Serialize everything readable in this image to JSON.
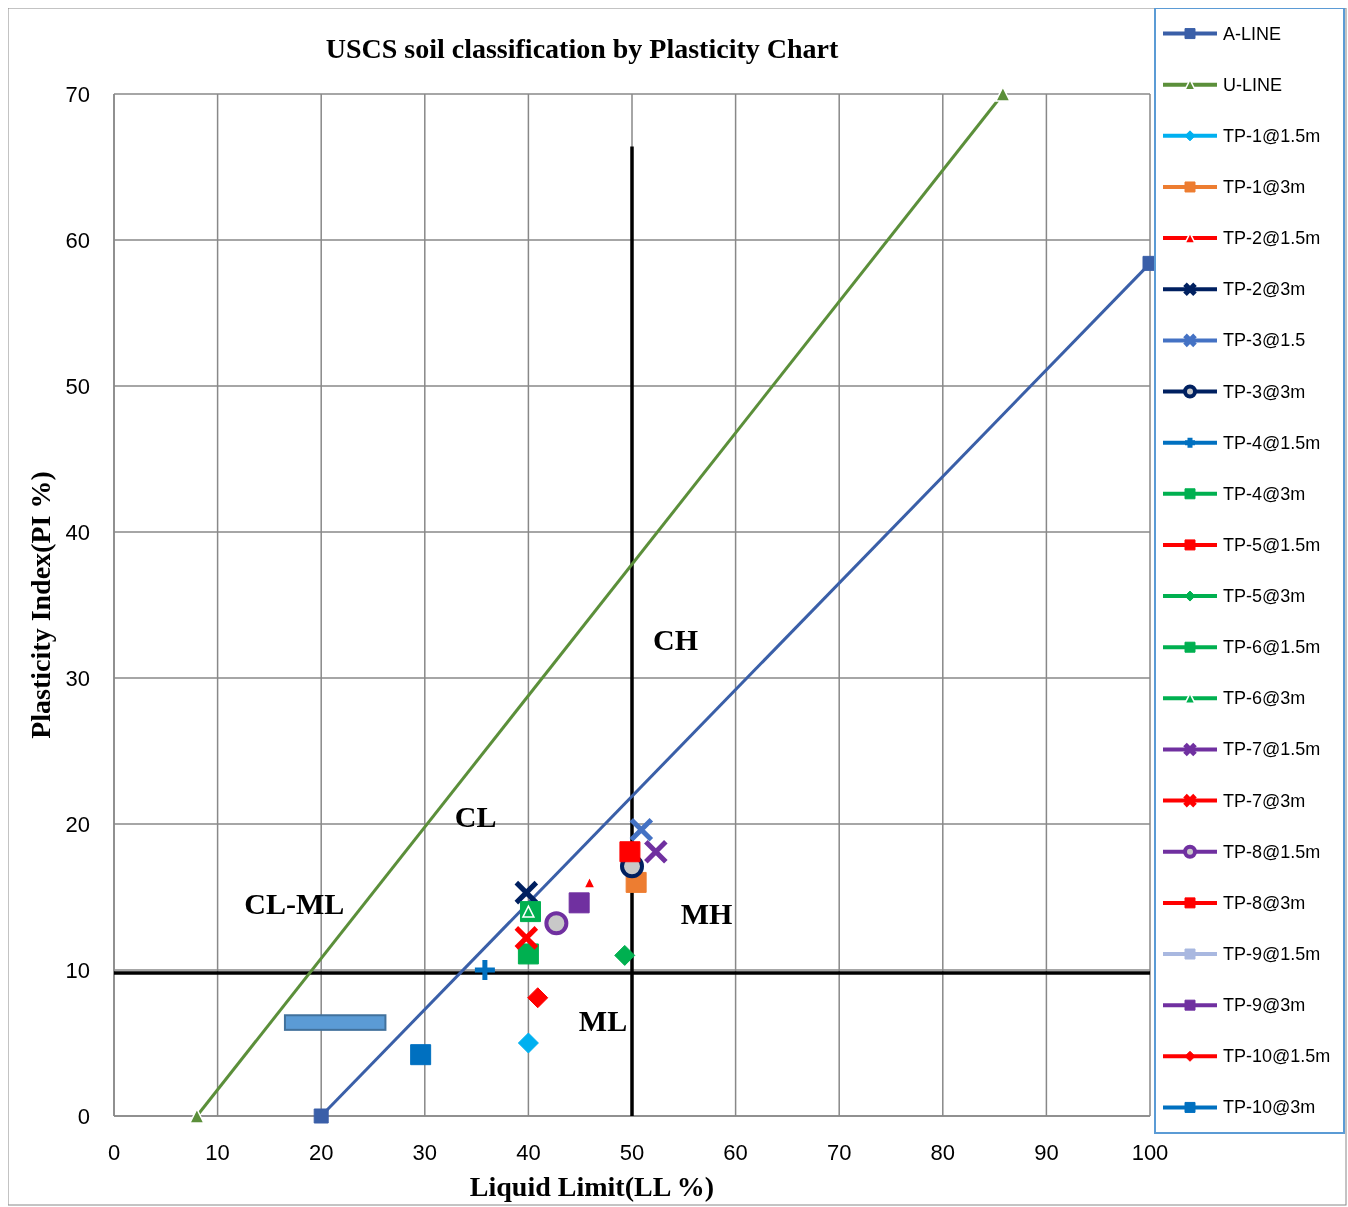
{
  "chart_data": {
    "type": "scatter",
    "title": "USCS soil classification by Plasticity  Chart",
    "xlabel": "Liquid  Limit(LL  %)",
    "ylabel": "Plasticity  Index(PI  %)",
    "xlim": [
      0,
      100
    ],
    "ylim": [
      0,
      70
    ],
    "xticks": [
      0,
      10,
      20,
      30,
      40,
      50,
      60,
      70,
      80,
      90,
      100
    ],
    "yticks": [
      0,
      10,
      20,
      30,
      40,
      50,
      60,
      70
    ],
    "grid": true,
    "legend": "right",
    "line_style": "solid",
    "annotations": [
      "CH",
      "CL",
      "CL-ML",
      "MH",
      "ML"
    ],
    "series": [
      {
        "type": "line",
        "color": "#000000",
        "x": [
          50,
          50
        ],
        "values": [
          0,
          66.4
        ]
      },
      {
        "type": "line",
        "color": "#000000",
        "x": [
          0,
          100
        ],
        "values": [
          9.8,
          9.8
        ]
      },
      {
        "name": "A-LINE",
        "type": "line",
        "marker": "square",
        "color": "#3a5fa8",
        "x": [
          20,
          100
        ],
        "values": [
          0,
          58.4
        ]
      },
      {
        "name": "U-LINE",
        "type": "line",
        "marker": "triangle",
        "color": "#5b8f3a",
        "x": [
          8,
          85.8
        ],
        "values": [
          0,
          70
        ]
      },
      {
        "name": "TP-1@1.5m",
        "marker": "diamond",
        "color": "#00b0f0",
        "x": [
          40
        ],
        "values": [
          5
        ]
      },
      {
        "name": "TP-1@3m",
        "marker": "square",
        "color": "#ed7d31",
        "x": [
          50.4
        ],
        "values": [
          16
        ]
      },
      {
        "name": "TP-2@1.5m",
        "marker": "triangle",
        "color": "#ff0000",
        "x": [
          45.9
        ],
        "values": [
          16
        ]
      },
      {
        "name": "TP-2@3m",
        "marker": "x",
        "color": "#002060",
        "x": [
          39.8
        ],
        "values": [
          15.3
        ]
      },
      {
        "name": "TP-3@1.5",
        "marker": "x",
        "color": "#4472c4",
        "x": [
          50.9
        ],
        "values": [
          19.6
        ]
      },
      {
        "name": "TP-3@3m",
        "marker": "circle",
        "color": "#002060",
        "x": [
          50
        ],
        "values": [
          17.1
        ]
      },
      {
        "name": "TP-4@1.5m",
        "marker": "cross",
        "color": "#0070c0",
        "x": [
          35.8
        ],
        "values": [
          10
        ]
      },
      {
        "name": "TP-4@3m",
        "marker": "square",
        "color": "#00b050",
        "x": [
          40.2
        ],
        "values": [
          14
        ]
      },
      {
        "name": "TP-5@1.5m",
        "marker": "square",
        "color": "#ff0000",
        "x": [
          49.8
        ],
        "values": [
          18.1
        ]
      },
      {
        "name": "TP-5@3m",
        "marker": "diamond",
        "color": "#00b050",
        "x": [
          49.3
        ],
        "values": [
          11
        ]
      },
      {
        "name": "TP-6@1.5m",
        "marker": "square",
        "color": "#00b050",
        "x": [
          40
        ],
        "values": [
          11.1
        ]
      },
      {
        "name": "TP-6@3m",
        "marker": "triangle",
        "color": "#00b050",
        "x": [
          40
        ],
        "values": [
          14
        ]
      },
      {
        "name": "TP-7@1.5m",
        "marker": "x",
        "color": "#7030a0",
        "x": [
          52.3
        ],
        "values": [
          18.1
        ]
      },
      {
        "name": "TP-7@3m",
        "marker": "x",
        "color": "#ff0000",
        "x": [
          39.8
        ],
        "values": [
          12.2
        ]
      },
      {
        "name": "TP-8@1.5m",
        "marker": "circle",
        "color": "#7030a0",
        "x": [
          42.7
        ],
        "values": [
          13.2
        ]
      },
      {
        "name": "TP-8@3m",
        "marker": "square",
        "color": "#ff0000",
        "values": [
          null
        ]
      },
      {
        "name": "TP-9@1.5m",
        "marker": "square",
        "color": "#a9b8e0",
        "values": [
          null
        ]
      },
      {
        "name": "TP-9@3m",
        "marker": "square",
        "color": "#7030a0",
        "x": [
          44.9
        ],
        "values": [
          14.6
        ]
      },
      {
        "name": "TP-10@1.5m",
        "marker": "diamond",
        "color": "#ff0000",
        "x": [
          40.9
        ],
        "values": [
          8.1
        ]
      },
      {
        "name": "TP-10@3m",
        "marker": "square",
        "color": "#0070c0",
        "x": [
          29.6
        ],
        "values": [
          4.2
        ]
      }
    ]
  }
}
